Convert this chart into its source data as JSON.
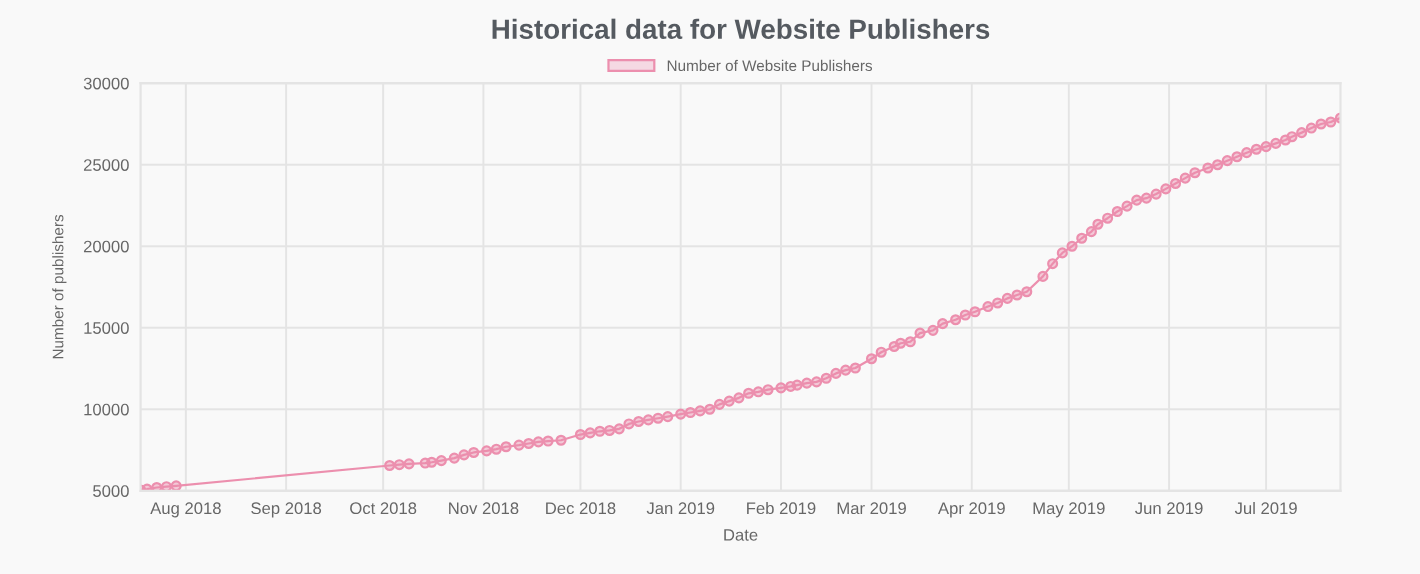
{
  "chart_data": {
    "type": "line",
    "title": "Historical data for Website Publishers",
    "xlabel": "Date",
    "ylabel": "Number of publishers",
    "x": [
      "2018-07-18",
      "2018-07-20",
      "2018-07-23",
      "2018-07-26",
      "2018-07-29",
      "2018-10-03",
      "2018-10-06",
      "2018-10-09",
      "2018-10-14",
      "2018-10-16",
      "2018-10-19",
      "2018-10-23",
      "2018-10-26",
      "2018-10-29",
      "2018-11-02",
      "2018-11-05",
      "2018-11-08",
      "2018-11-12",
      "2018-11-15",
      "2018-11-18",
      "2018-11-21",
      "2018-11-25",
      "2018-12-01",
      "2018-12-04",
      "2018-12-07",
      "2018-12-10",
      "2018-12-13",
      "2018-12-16",
      "2018-12-19",
      "2018-12-22",
      "2018-12-25",
      "2018-12-28",
      "2019-01-01",
      "2019-01-04",
      "2019-01-07",
      "2019-01-10",
      "2019-01-13",
      "2019-01-16",
      "2019-01-19",
      "2019-01-22",
      "2019-01-25",
      "2019-01-28",
      "2019-02-01",
      "2019-02-04",
      "2019-02-06",
      "2019-02-09",
      "2019-02-12",
      "2019-02-15",
      "2019-02-18",
      "2019-02-21",
      "2019-02-24",
      "2019-03-01",
      "2019-03-04",
      "2019-03-08",
      "2019-03-10",
      "2019-03-13",
      "2019-03-16",
      "2019-03-20",
      "2019-03-23",
      "2019-03-27",
      "2019-03-30",
      "2019-04-02",
      "2019-04-06",
      "2019-04-09",
      "2019-04-12",
      "2019-04-15",
      "2019-04-18",
      "2019-04-23",
      "2019-04-26",
      "2019-04-29",
      "2019-05-02",
      "2019-05-05",
      "2019-05-08",
      "2019-05-10",
      "2019-05-13",
      "2019-05-16",
      "2019-05-19",
      "2019-05-22",
      "2019-05-25",
      "2019-05-28",
      "2019-05-31",
      "2019-06-03",
      "2019-06-06",
      "2019-06-09",
      "2019-06-13",
      "2019-06-16",
      "2019-06-19",
      "2019-06-22",
      "2019-06-25",
      "2019-06-28",
      "2019-07-01",
      "2019-07-04",
      "2019-07-07",
      "2019-07-09",
      "2019-07-12",
      "2019-07-15",
      "2019-07-18",
      "2019-07-21",
      "2019-07-24"
    ],
    "series": [
      {
        "name": "Number of Website Publishers",
        "color": "#ec8fae",
        "values": [
          5050,
          5100,
          5200,
          5250,
          5300,
          6550,
          6600,
          6650,
          6700,
          6750,
          6850,
          7000,
          7200,
          7350,
          7450,
          7550,
          7700,
          7800,
          7900,
          8000,
          8050,
          8100,
          8450,
          8550,
          8650,
          8700,
          8800,
          9100,
          9250,
          9350,
          9450,
          9550,
          9700,
          9800,
          9900,
          10000,
          10300,
          10500,
          10700,
          10980,
          11070,
          11200,
          11310,
          11400,
          11480,
          11600,
          11680,
          11900,
          12200,
          12400,
          12530,
          13100,
          13500,
          13850,
          14050,
          14140,
          14670,
          14840,
          15250,
          15490,
          15780,
          15980,
          16300,
          16520,
          16800,
          17010,
          17210,
          18150,
          18930,
          19590,
          20000,
          20490,
          20900,
          21350,
          21720,
          22130,
          22460,
          22830,
          22950,
          23200,
          23520,
          23850,
          24180,
          24510,
          24800,
          25000,
          25250,
          25490,
          25740,
          25950,
          26110,
          26310,
          26520,
          26720,
          26970,
          27250,
          27500,
          27620,
          27870
        ]
      }
    ],
    "xlim": [
      "2018-07-18",
      "2019-07-24"
    ],
    "xticks": [
      {
        "value": "2018-08-01",
        "label": "Aug 2018"
      },
      {
        "value": "2018-09-01",
        "label": "Sep 2018"
      },
      {
        "value": "2018-10-01",
        "label": "Oct 2018"
      },
      {
        "value": "2018-11-01",
        "label": "Nov 2018"
      },
      {
        "value": "2018-12-01",
        "label": "Dec 2018"
      },
      {
        "value": "2019-01-01",
        "label": "Jan 2019"
      },
      {
        "value": "2019-02-01",
        "label": "Feb 2019"
      },
      {
        "value": "2019-03-01",
        "label": "Mar 2019"
      },
      {
        "value": "2019-04-01",
        "label": "Apr 2019"
      },
      {
        "value": "2019-05-01",
        "label": "May 2019"
      },
      {
        "value": "2019-06-01",
        "label": "Jun 2019"
      },
      {
        "value": "2019-07-01",
        "label": "Jul 2019"
      }
    ],
    "ylim": [
      5000,
      30000
    ],
    "yticks": [
      5000,
      10000,
      15000,
      20000,
      25000,
      30000
    ],
    "grid": true,
    "legend": "top",
    "marker": "circle",
    "line_style": "solid"
  }
}
